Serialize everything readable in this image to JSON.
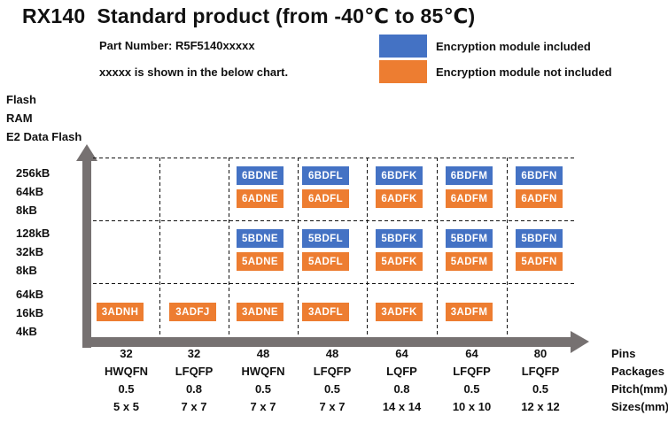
{
  "title": "RX140  Standard product (from -40℃ to 85℃)",
  "part_number_label": "Part Number: R5F5140xxxxx",
  "note": "xxxxx is shown in the below chart.",
  "legend": {
    "included": {
      "label": "Encryption module included",
      "color": "#4472C4"
    },
    "not_included": {
      "label": "Encryption module not included",
      "color": "#ED7D31"
    }
  },
  "left_axis": {
    "headers": [
      "Flash",
      "RAM",
      "E2 Data Flash"
    ]
  },
  "bottom_axis": {
    "headers": [
      "Pins",
      "Packages",
      "Pitch(mm)",
      "Sizes(mm)"
    ]
  },
  "colors": {
    "included": "#4472C4",
    "not_included": "#ED7D31",
    "axis": "#767171"
  },
  "chart_data": {
    "type": "table",
    "title": "RX140  Standard product (from -40℃ to 85℃)",
    "y_axis_label": "Flash / RAM / E2 Data Flash",
    "x_axis_label": "Pins / Packages / Pitch(mm) / Sizes(mm)",
    "y_groups": [
      {
        "flash": "256kB",
        "ram": "64kB",
        "e2_data_flash": "8kB"
      },
      {
        "flash": "128kB",
        "ram": "32kB",
        "e2_data_flash": "8kB"
      },
      {
        "flash": "64kB",
        "ram": "16kB",
        "e2_data_flash": "4kB"
      }
    ],
    "x_columns": [
      {
        "pins": "32",
        "package": "HWQFN",
        "pitch_mm": "0.5",
        "size_mm": "5 x 5"
      },
      {
        "pins": "32",
        "package": "LFQFP",
        "pitch_mm": "0.8",
        "size_mm": "7 x 7"
      },
      {
        "pins": "48",
        "package": "HWQFN",
        "pitch_mm": "0.5",
        "size_mm": "7 x 7"
      },
      {
        "pins": "48",
        "package": "LFQFP",
        "pitch_mm": "0.5",
        "size_mm": "7 x 7"
      },
      {
        "pins": "64",
        "package": "LQFP",
        "pitch_mm": "0.8",
        "size_mm": "14 x 14"
      },
      {
        "pins": "64",
        "package": "LFQFP",
        "pitch_mm": "0.5",
        "size_mm": "10 x 10"
      },
      {
        "pins": "80",
        "package": "LFQFP",
        "pitch_mm": "0.5",
        "size_mm": "12 x 12"
      }
    ],
    "cells": [
      {
        "row": 0,
        "col": 2,
        "included": "6BDNE",
        "not_included": "6ADNE"
      },
      {
        "row": 0,
        "col": 3,
        "included": "6BDFL",
        "not_included": "6ADFL"
      },
      {
        "row": 0,
        "col": 4,
        "included": "6BDFK",
        "not_included": "6ADFK"
      },
      {
        "row": 0,
        "col": 5,
        "included": "6BDFM",
        "not_included": "6ADFM"
      },
      {
        "row": 0,
        "col": 6,
        "included": "6BDFN",
        "not_included": "6ADFN"
      },
      {
        "row": 1,
        "col": 2,
        "included": "5BDNE",
        "not_included": "5ADNE"
      },
      {
        "row": 1,
        "col": 3,
        "included": "5BDFL",
        "not_included": "5ADFL"
      },
      {
        "row": 1,
        "col": 4,
        "included": "5BDFK",
        "not_included": "5ADFK"
      },
      {
        "row": 1,
        "col": 5,
        "included": "5BDFM",
        "not_included": "5ADFM"
      },
      {
        "row": 1,
        "col": 6,
        "included": "5BDFN",
        "not_included": "5ADFN"
      },
      {
        "row": 2,
        "col": 0,
        "not_included": "3ADNH"
      },
      {
        "row": 2,
        "col": 1,
        "not_included": "3ADFJ"
      },
      {
        "row": 2,
        "col": 2,
        "not_included": "3ADNE"
      },
      {
        "row": 2,
        "col": 3,
        "not_included": "3ADFL"
      },
      {
        "row": 2,
        "col": 4,
        "not_included": "3ADFK"
      },
      {
        "row": 2,
        "col": 5,
        "not_included": "3ADFM"
      }
    ]
  }
}
